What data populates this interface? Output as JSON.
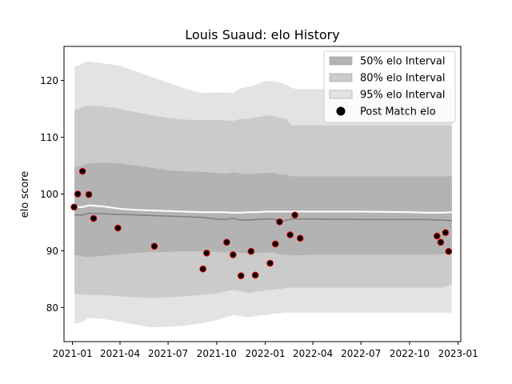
{
  "chart_data": {
    "type": "line",
    "title": "Louis Suaud: elo History",
    "xlabel": "",
    "ylabel": "elo score",
    "xlim": [
      "2020-12-16",
      "2023-01-06"
    ],
    "ylim": [
      74,
      126
    ],
    "grid": false,
    "legend_position": "top-right",
    "x_ticks": [
      "2021-01",
      "2021-04",
      "2021-07",
      "2021-10",
      "2022-01",
      "2022-04",
      "2022-07",
      "2022-10",
      "2023-01"
    ],
    "y_ticks": [
      80,
      90,
      100,
      110,
      120
    ],
    "legend": [
      {
        "label": "50% elo Interval",
        "kind": "band",
        "color": "#b3b3b3"
      },
      {
        "label": "80% elo Interval",
        "kind": "band",
        "color": "#cbcbcb"
      },
      {
        "label": "95% elo Interval",
        "kind": "band",
        "color": "#e3e3e3"
      },
      {
        "label": "Post Match elo",
        "kind": "marker",
        "color": "#000000"
      }
    ],
    "bands": {
      "x": [
        "2021-01-05",
        "2021-01-12",
        "2021-01-20",
        "2021-02-01",
        "2021-03-01",
        "2021-04-01",
        "2021-05-01",
        "2021-06-01",
        "2021-07-01",
        "2021-08-01",
        "2021-09-01",
        "2021-10-01",
        "2021-10-15",
        "2021-11-01",
        "2021-11-15",
        "2021-12-01",
        "2021-12-15",
        "2022-01-01",
        "2022-01-15",
        "2022-02-01",
        "2022-02-10",
        "2022-02-20",
        "2022-03-01",
        "2022-04-01",
        "2022-07-01",
        "2022-10-01",
        "2022-11-01",
        "2022-12-01",
        "2022-12-20"
      ],
      "p95_upper": [
        122.6,
        122.6,
        123.0,
        123.4,
        123.0,
        122.6,
        121.6,
        120.6,
        119.6,
        118.6,
        117.8,
        117.9,
        117.9,
        117.8,
        118.6,
        118.9,
        119.3,
        119.9,
        119.9,
        119.5,
        119.2,
        118.7,
        118.5,
        118.5,
        118.5,
        118.5,
        118.5,
        118.5,
        118.6
      ],
      "p80_upper": [
        114.9,
        114.9,
        115.3,
        115.6,
        115.4,
        115.0,
        114.4,
        113.9,
        113.4,
        113.1,
        113.0,
        113.0,
        113.0,
        112.9,
        113.2,
        113.3,
        113.5,
        113.8,
        113.8,
        113.3,
        113.3,
        112.1,
        112.1,
        112.1,
        112.1,
        112.1,
        112.1,
        112.1,
        112.1
      ],
      "p50_upper": [
        104.8,
        104.8,
        105.0,
        105.4,
        105.5,
        105.4,
        105.0,
        104.6,
        104.2,
        104.0,
        103.9,
        103.7,
        103.6,
        103.8,
        103.6,
        103.5,
        103.6,
        103.7,
        103.7,
        103.4,
        103.4,
        103.1,
        103.1,
        103.1,
        103.1,
        103.1,
        103.1,
        103.1,
        103.1
      ],
      "median": [
        96.3,
        96.3,
        96.3,
        96.6,
        96.5,
        96.4,
        96.3,
        96.2,
        96.1,
        96.0,
        95.9,
        95.6,
        95.5,
        95.7,
        95.4,
        95.4,
        95.5,
        95.6,
        95.6,
        95.2,
        95.4,
        95.6,
        95.6,
        95.6,
        95.5,
        95.5,
        95.5,
        95.4,
        95.3
      ],
      "p50_lower": [
        89.2,
        89.2,
        89.0,
        88.9,
        89.1,
        89.4,
        89.6,
        89.8,
        89.8,
        89.9,
        89.9,
        89.8,
        89.7,
        89.9,
        89.6,
        89.5,
        89.6,
        89.7,
        89.7,
        89.3,
        89.3,
        89.2,
        89.2,
        89.3,
        89.3,
        89.3,
        89.3,
        89.4,
        89.4
      ],
      "p80_lower": [
        82.4,
        82.4,
        82.3,
        82.2,
        82.2,
        82.0,
        81.8,
        81.7,
        81.8,
        82.0,
        82.2,
        82.5,
        82.8,
        83.1,
        82.9,
        82.6,
        82.8,
        83.0,
        83.1,
        83.3,
        83.5,
        83.5,
        83.5,
        83.5,
        83.5,
        83.5,
        83.5,
        83.5,
        84.1
      ],
      "p95_lower": [
        77.2,
        77.2,
        77.5,
        78.2,
        78.0,
        77.5,
        77.0,
        76.5,
        76.6,
        76.8,
        77.2,
        77.8,
        78.2,
        78.7,
        78.5,
        78.3,
        78.5,
        78.7,
        78.9,
        79.0,
        79.1,
        79.1,
        79.1,
        79.1,
        79.1,
        79.1,
        79.1,
        79.1,
        79.1
      ],
      "mean": [
        97.7,
        97.7,
        97.7,
        98.0,
        97.8,
        97.4,
        97.2,
        97.1,
        97.0,
        96.9,
        96.8,
        96.8,
        96.8,
        96.7,
        96.7,
        96.8,
        96.8,
        96.9,
        96.9,
        96.9,
        96.9,
        96.9,
        96.9,
        96.9,
        96.9,
        96.8,
        96.7,
        96.7,
        96.8
      ]
    },
    "post_match": {
      "x": [
        "2021-01-04",
        "2021-01-11",
        "2021-01-20",
        "2021-02-01",
        "2021-02-10",
        "2021-03-28",
        "2021-06-05",
        "2021-09-05",
        "2021-09-12",
        "2021-10-20",
        "2021-11-01",
        "2021-11-16",
        "2021-12-05",
        "2021-12-13",
        "2022-01-10",
        "2022-01-20",
        "2022-01-28",
        "2022-02-17",
        "2022-02-26",
        "2022-03-08",
        "2022-11-22",
        "2022-11-29",
        "2022-12-08",
        "2022-12-14"
      ],
      "y": [
        97.7,
        100.0,
        104.0,
        99.9,
        95.7,
        94.0,
        90.8,
        86.8,
        89.6,
        91.5,
        89.3,
        85.6,
        89.9,
        85.7,
        87.8,
        91.2,
        95.1,
        92.8,
        96.3,
        92.2,
        92.6,
        91.5,
        93.2,
        89.9
      ]
    }
  }
}
